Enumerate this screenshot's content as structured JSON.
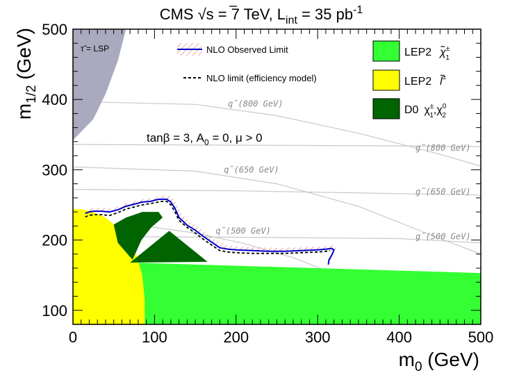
{
  "chart_data": {
    "type": "area",
    "title": "CMS √s = 7 TeV, L_int = 35 pb⁻¹",
    "title_parts": {
      "cms": "CMS",
      "sqrt": "√",
      "s": "s",
      "energy": " = 7 TeV, L",
      "sub": "int",
      "lumi": " = 35 pb",
      "sup": "-1"
    },
    "xlabel": "m0 (GeV)",
    "xlabel_parts": {
      "main": "m",
      "sub": "0",
      "unit": " (GeV)"
    },
    "ylabel": "m1/2 (GeV)",
    "ylabel_parts": {
      "main": "m",
      "sub": "1/2",
      "unit": " (GeV)"
    },
    "xlim": [
      0,
      500
    ],
    "ylim": [
      80,
      500
    ],
    "xticks": [
      "0",
      "100",
      "200",
      "300",
      "400",
      "500"
    ],
    "yticks": [
      "100",
      "200",
      "300",
      "400",
      "500"
    ],
    "xtick_values": [
      0,
      100,
      200,
      300,
      400,
      500
    ],
    "ytick_values": [
      100,
      200,
      300,
      400,
      500
    ],
    "parameters": "tanβ = 3, A0 = 0, μ > 0",
    "parameters_parts": {
      "a": "tanβ = 3, A",
      "sub": "0",
      "b": " = 0, μ > 0"
    },
    "lsp_label": "τ̃ = LSP",
    "legend": [
      {
        "name": "NLO Observed Limit",
        "style": "solid-line-hatched"
      },
      {
        "name": "NLO limit (efficiency model)",
        "style": "dashed-line"
      },
      {
        "name": "LEP2 χ̃±1",
        "style": "fill",
        "color": "#33ff33"
      },
      {
        "name": "LEP2 l̃±",
        "style": "fill",
        "color": "#ffff00"
      },
      {
        "name": "D0 χ±1, χ02",
        "style": "fill",
        "color": "#006400"
      }
    ],
    "legend_parts": {
      "lep2": "LEP2",
      "chargino": "χ̃",
      "chargino_sup": "±",
      "chargino_sub": "1",
      "slepton": "l̃",
      "slepton_sup": "±",
      "d0": "D0",
      "d0_chi": "χ",
      "d0_sup1": "±",
      "d0_sub1": "1",
      "d0_comma": ",χ",
      "d0_sup2": "0",
      "d0_sub2": "2"
    },
    "colors": {
      "lep_chargino": "#33ff33",
      "lep_slepton": "#ffff00",
      "d0": "#006400",
      "lsp": "#a9a9bf",
      "observed": "#0000cc",
      "hatch": "#e06666",
      "expected": "#000000",
      "contour": "#c8c8c8",
      "contour_label": "#888888"
    },
    "series": [
      {
        "name": "NLO Observed Limit",
        "x": [
          15,
          20,
          25,
          35,
          45,
          55,
          65,
          75,
          85,
          95,
          105,
          110,
          115,
          120,
          125,
          130,
          140,
          150,
          160,
          170,
          180,
          190,
          200,
          220,
          240,
          260,
          280,
          300,
          310,
          317,
          320,
          318,
          314,
          313
        ],
        "y": [
          238,
          240,
          241,
          241,
          240,
          243,
          248,
          251,
          254,
          255,
          258,
          258,
          258,
          254,
          245,
          232,
          221,
          214,
          205,
          197,
          189,
          187,
          186,
          185,
          184,
          184,
          185,
          186,
          187,
          188,
          186,
          180,
          172,
          165
        ]
      },
      {
        "name": "NLO limit (efficiency model)",
        "x": [
          15,
          20,
          25,
          35,
          45,
          55,
          65,
          75,
          85,
          95,
          105,
          110,
          115,
          120,
          125,
          130,
          140,
          150,
          160,
          170,
          180,
          190,
          200,
          220,
          240,
          260,
          280,
          300,
          310,
          315
        ],
        "y": [
          233,
          235,
          236,
          236,
          235,
          239,
          244,
          247,
          250,
          252,
          254,
          255,
          255,
          250,
          240,
          228,
          218,
          210,
          201,
          193,
          185,
          183,
          182,
          181,
          181,
          181,
          182,
          183,
          184,
          185
        ]
      }
    ],
    "regions": [
      {
        "name": "LEP2 chargino",
        "polygon": [
          [
            70,
            168
          ],
          [
            500,
            153
          ],
          [
            500,
            80
          ],
          [
            70,
            80
          ]
        ]
      },
      {
        "name": "LEP2 slepton",
        "polygon": [
          [
            0,
            244
          ],
          [
            10,
            244
          ],
          [
            25,
            240
          ],
          [
            40,
            232
          ],
          [
            55,
            218
          ],
          [
            68,
            200
          ],
          [
            78,
            178
          ],
          [
            85,
            150
          ],
          [
            88,
            115
          ],
          [
            88,
            80
          ],
          [
            0,
            80
          ]
        ]
      },
      {
        "name": "D0 upper",
        "polygon": [
          [
            50,
            222
          ],
          [
            65,
            232
          ],
          [
            85,
            240
          ],
          [
            105,
            240
          ],
          [
            110,
            232
          ],
          [
            96,
            218
          ],
          [
            84,
            200
          ],
          [
            73,
            172
          ],
          [
            55,
            196
          ]
        ]
      },
      {
        "name": "D0 lower",
        "polygon": [
          [
            70,
            168
          ],
          [
            118,
            213
          ],
          [
            165,
            169
          ]
        ]
      },
      {
        "name": "stau LSP",
        "polygon": [
          [
            0,
            500
          ],
          [
            65,
            500
          ],
          [
            55,
            455
          ],
          [
            40,
            408
          ],
          [
            25,
            372
          ],
          [
            0,
            342
          ]
        ]
      }
    ],
    "contours": [
      {
        "label": "q̃(800 GeV)",
        "kind": "squark",
        "points": [
          [
            0,
            397
          ],
          [
            150,
            393
          ],
          [
            250,
            377
          ],
          [
            350,
            352
          ],
          [
            450,
            322
          ],
          [
            500,
            305
          ]
        ]
      },
      {
        "label": "g̃(800 GeV)",
        "kind": "gluino",
        "points": [
          [
            0,
            336
          ],
          [
            200,
            335
          ],
          [
            400,
            334
          ],
          [
            500,
            333
          ]
        ]
      },
      {
        "label": "q̃(650 GeV)",
        "kind": "squark",
        "points": [
          [
            0,
            304
          ],
          [
            150,
            298
          ],
          [
            250,
            280
          ],
          [
            350,
            248
          ],
          [
            450,
            202
          ],
          [
            500,
            180
          ]
        ]
      },
      {
        "label": "g̃(650 GeV)",
        "kind": "gluino",
        "points": [
          [
            0,
            272
          ],
          [
            200,
            270
          ],
          [
            400,
            266
          ],
          [
            500,
            264
          ]
        ]
      },
      {
        "label": "q̃(500 GeV)",
        "kind": "squark",
        "points": [
          [
            0,
            222
          ],
          [
            100,
            218
          ],
          [
            150,
            210
          ],
          [
            210,
            195
          ],
          [
            270,
            175
          ],
          [
            320,
            152
          ],
          [
            350,
            140
          ]
        ]
      },
      {
        "label": "g̃(500 GeV)",
        "kind": "gluino",
        "points": [
          [
            0,
            205
          ],
          [
            200,
            204
          ],
          [
            400,
            202
          ],
          [
            500,
            196
          ]
        ]
      }
    ],
    "contour_labels": [
      {
        "text": "q̃(800 GeV)",
        "x": 190,
        "y": 390
      },
      {
        "text": "g̃(800 GeV)",
        "x": 420,
        "y": 327
      },
      {
        "text": "q̃(650 GeV)",
        "x": 185,
        "y": 296
      },
      {
        "text": "g̃(650 GeV)",
        "x": 420,
        "y": 265
      },
      {
        "text": "q̃(500 GeV)",
        "x": 175,
        "y": 209
      },
      {
        "text": "g̃(500 GeV)",
        "x": 420,
        "y": 201
      }
    ]
  }
}
